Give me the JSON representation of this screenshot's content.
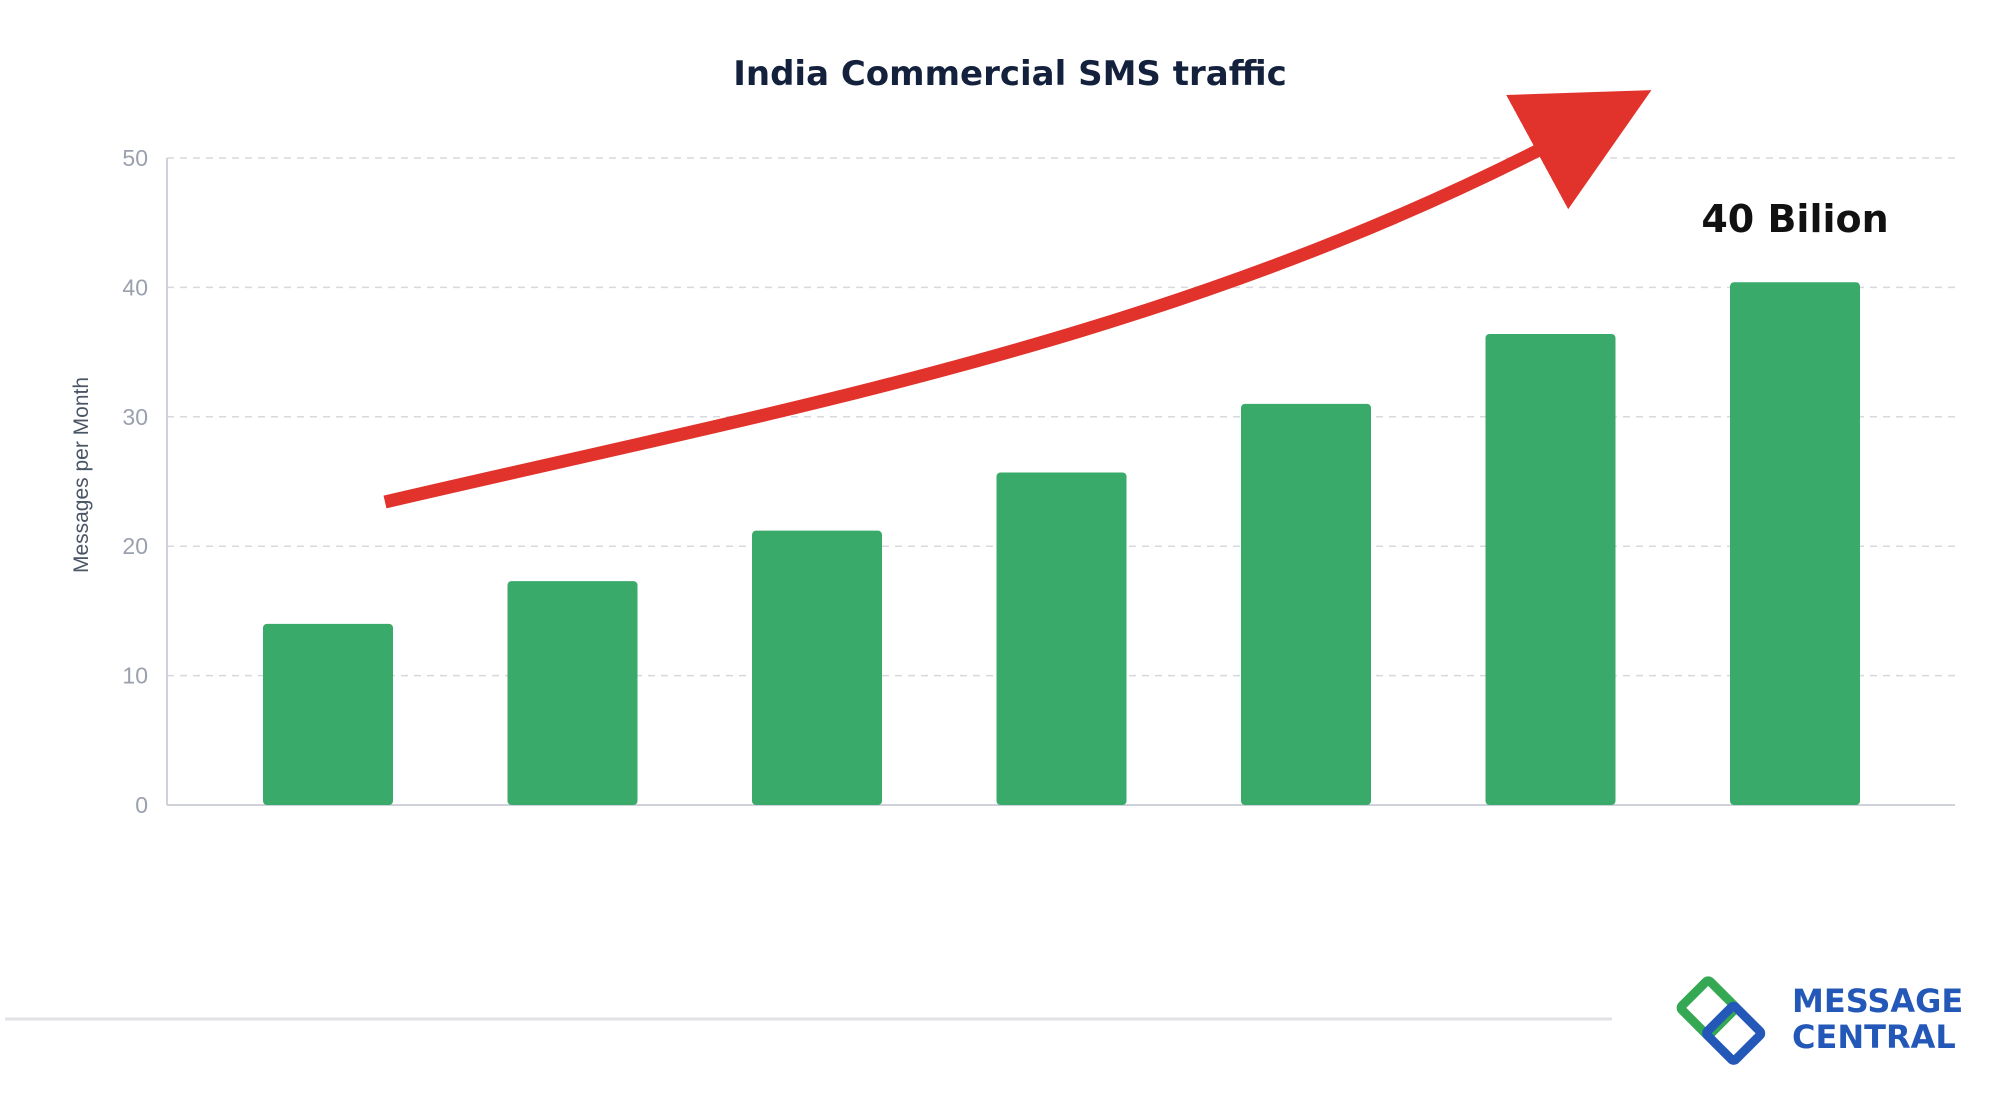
{
  "chart_data": {
    "type": "bar",
    "title": "India Commercial SMS traffic",
    "ylabel": "Messages per Month",
    "xlabel": "",
    "ylim": [
      0,
      50
    ],
    "yticks": [
      0,
      10,
      20,
      30,
      40,
      50
    ],
    "grid": true,
    "values": [
      14,
      17.3,
      21.2,
      25.7,
      31,
      36.4,
      40.4
    ],
    "bar_color": "#3aaa6a",
    "annotations": [
      {
        "text": "40 Bilion",
        "target_bar": 6
      },
      {
        "type": "trend-arrow",
        "color": "#e1322b"
      }
    ]
  },
  "footer": {
    "brand_line1": "MESSAGE",
    "brand_line2": "CENTRAL",
    "brand_text_color": "#2458b8",
    "logo_icon": "message-central-logo-icon",
    "logo_colors": [
      "#34a853",
      "#2458b8"
    ]
  }
}
